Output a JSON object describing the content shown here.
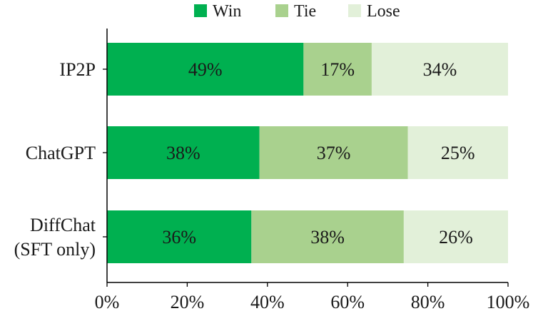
{
  "chart_data": {
    "type": "bar",
    "orientation": "horizontal",
    "stacked": true,
    "categories": [
      [
        "IP2P"
      ],
      [
        "ChatGPT"
      ],
      [
        "DiffChat",
        "(SFT only)"
      ]
    ],
    "series": [
      {
        "name": "Win",
        "color": "#00b050",
        "values": [
          49,
          38,
          36
        ],
        "labels": [
          "49%",
          "38%",
          "36%"
        ]
      },
      {
        "name": "Tie",
        "color": "#a9d18e",
        "values": [
          17,
          37,
          38
        ],
        "labels": [
          "17%",
          "37%",
          "38%"
        ]
      },
      {
        "name": "Lose",
        "color": "#e2f0d9",
        "values": [
          34,
          25,
          26
        ],
        "labels": [
          "34%",
          "25%",
          "26%"
        ]
      }
    ],
    "xlim": [
      0,
      100
    ],
    "xticks": [
      0,
      20,
      40,
      60,
      80,
      100
    ],
    "xtick_labels": [
      "0%",
      "20%",
      "40%",
      "60%",
      "80%",
      "100%"
    ],
    "grid": false,
    "legend_position": "top-center"
  }
}
